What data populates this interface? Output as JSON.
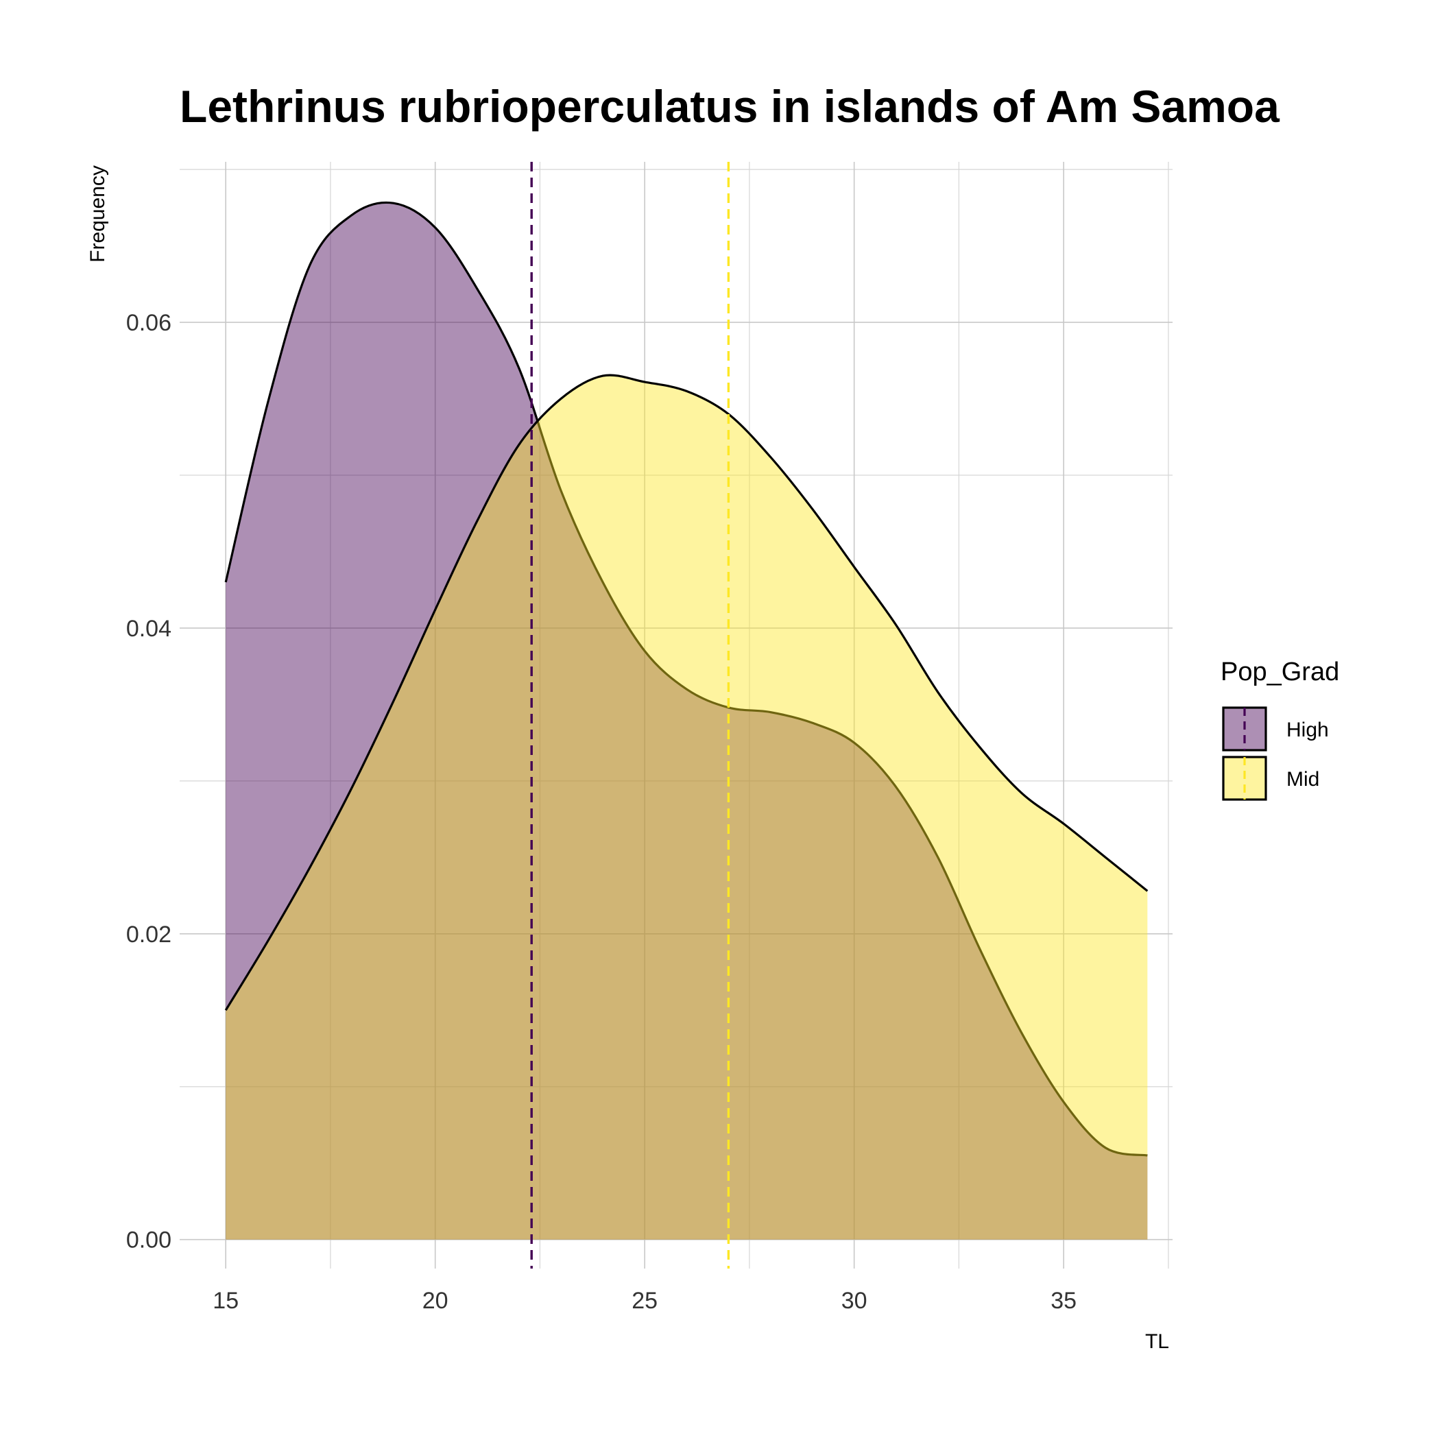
{
  "chart_data": {
    "type": "area",
    "title": "Lethrinus rubrioperculatus in islands of Am Samoa",
    "xlabel": "TL",
    "ylabel": "Frequency",
    "xlim": [
      13.9,
      37.6
    ],
    "ylim": [
      -0.0019,
      0.0705
    ],
    "x_ticks": [
      15,
      20,
      25,
      30,
      35
    ],
    "x_tick_labels": [
      "15",
      "20",
      "25",
      "30",
      "35"
    ],
    "y_ticks": [
      0.0,
      0.02,
      0.04,
      0.06
    ],
    "y_tick_labels": [
      "0.00",
      "0.02",
      "0.04",
      "0.06"
    ],
    "grid": true,
    "legend": {
      "title": "Pop_Grad",
      "position": "right"
    },
    "series": [
      {
        "name": "High",
        "color": "#440154",
        "fill": "#440154",
        "fill_opacity": 0.44,
        "mean_line": 22.3,
        "x": [
          15,
          16,
          17,
          18,
          19,
          20,
          21,
          22,
          23,
          24,
          25,
          26,
          27,
          28,
          29,
          30,
          31,
          32,
          33,
          34,
          35,
          36,
          37
        ],
        "y": [
          0.043,
          0.0547,
          0.0637,
          0.067,
          0.0678,
          0.0662,
          0.0622,
          0.057,
          0.049,
          0.043,
          0.0385,
          0.036,
          0.0348,
          0.0345,
          0.0338,
          0.0325,
          0.0296,
          0.025,
          0.019,
          0.0135,
          0.009,
          0.006,
          0.0055
        ]
      },
      {
        "name": "Mid",
        "color": "#FDE725",
        "fill": "#FDE725",
        "fill_opacity": 0.44,
        "mean_line": 27.0,
        "x": [
          15,
          16,
          17,
          18,
          19,
          20,
          21,
          22,
          23,
          24,
          25,
          26,
          27,
          28,
          29,
          30,
          31,
          32,
          33,
          34,
          35,
          36,
          37
        ],
        "y": [
          0.015,
          0.0195,
          0.0243,
          0.0295,
          0.0352,
          0.0412,
          0.047,
          0.052,
          0.055,
          0.0565,
          0.0561,
          0.0555,
          0.054,
          0.0512,
          0.0478,
          0.044,
          0.0402,
          0.0358,
          0.0322,
          0.0292,
          0.0272,
          0.025,
          0.0228
        ]
      }
    ]
  }
}
